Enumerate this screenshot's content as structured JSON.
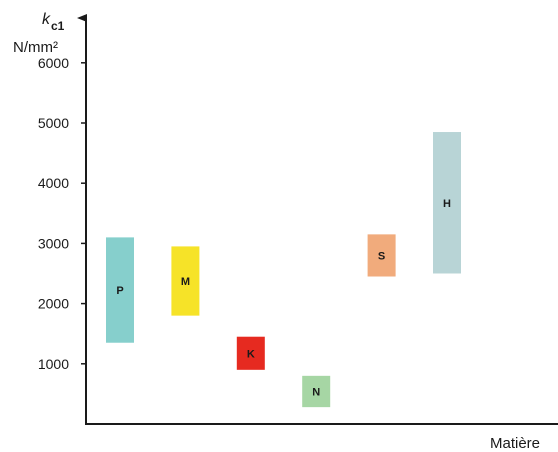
{
  "chart_data": {
    "type": "range-bar",
    "y_label_symbol": "k",
    "y_label_subscript": "c1",
    "y_label_unit": "N/mm²",
    "xlabel": "Matière",
    "ylim": [
      0,
      6000
    ],
    "yticks": [
      1000,
      2000,
      3000,
      4000,
      5000,
      6000
    ],
    "grid": false,
    "categories": [
      "P",
      "M",
      "K",
      "N",
      "S",
      "H"
    ],
    "ranges": [
      {
        "label": "P",
        "low": 1350,
        "high": 3100,
        "color": "#86cfcc"
      },
      {
        "label": "M",
        "low": 1800,
        "high": 2950,
        "color": "#f6e328"
      },
      {
        "label": "K",
        "low": 900,
        "high": 1450,
        "color": "#e62a20"
      },
      {
        "label": "N",
        "low": 280,
        "high": 800,
        "color": "#a6d6a4"
      },
      {
        "label": "S",
        "low": 2450,
        "high": 3150,
        "color": "#f1ab7c"
      },
      {
        "label": "H",
        "low": 2500,
        "high": 4850,
        "color": "#b8d4d6"
      }
    ]
  }
}
